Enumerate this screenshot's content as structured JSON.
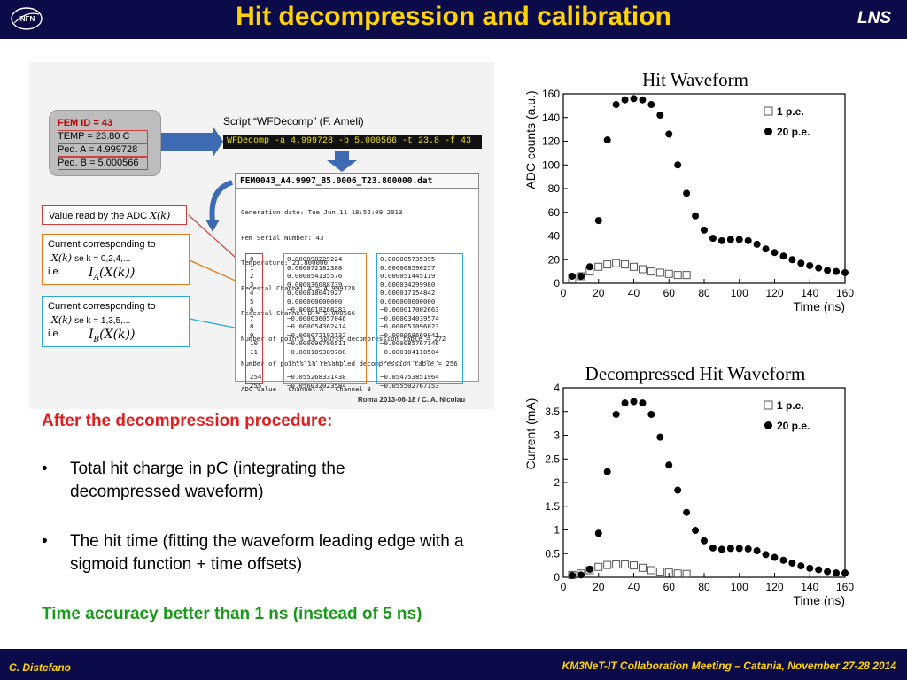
{
  "header": {
    "logo_text": "INFN",
    "title": "Hit decompression and calibration",
    "lab": "LNS"
  },
  "footer": {
    "author": "C. Distefano",
    "event": "KM3NeT-IT Collaboration Meeting – Catania, November 27-28 2014"
  },
  "figure": {
    "fem_box": {
      "title": "FEM ID = 43",
      "temp": "TEMP = 23.80 C",
      "ped_a": "Ped. A = 4.999728",
      "ped_b": "Ped. B = 5.000566"
    },
    "script_label": "Script “WFDecomp” (F. Ameli)",
    "command": "WFDecomp -a 4.999728 -b 5.000566 -t 23.8 -f 43",
    "file_name": "FEM0043_A4.9997_B5.0006_T23.800000.dat",
    "file_header_lines": [
      "Generation date: Tue Jun 11 18:52:09 2013",
      "Fem Serial Number: 43",
      "Temperature: 23.800000",
      "Pedestal Channel A = 4.999728",
      "Pedestal Channel B = 5.000566",
      "Number of points in source decompression table = 272",
      "Number of points in resampled decompression table = 256",
      "ADC Value   Channel A   Channel B"
    ],
    "adc_values": [
      "0",
      "1",
      "2",
      "3",
      "4",
      "5",
      "6",
      "7",
      "8",
      "9",
      "10",
      "11",
      "...",
      "",
      "254",
      "255"
    ],
    "channel_a": [
      "0.000090229224",
      "0.000072182388",
      "0.000054135576",
      "0.000036088739",
      "0.000018041927",
      "0.000000000000",
      "−0.000018268283",
      "−0.000036057046",
      "−0.000054362414",
      "−0.000072192132",
      "−0.000090786511",
      "−0.000109389780",
      "...............",
      "",
      "−0.055268331438",
      "−0.056032023584"
    ],
    "channel_b": [
      "0.000085735395",
      "0.000068590257",
      "0.000051445119",
      "0.000034299980",
      "0.000017154842",
      "0.000000000000",
      "−0.000017002663",
      "−0.000034039574",
      "−0.000051096023",
      "−0.000068669041",
      "−0.000085767146",
      "−0.000104110504",
      "...............",
      "",
      "−0.054753851964",
      "−0.055502767153"
    ],
    "adc_label": "Value read by the ADC",
    "adc_symbol": "X(k)",
    "current_a_l1": "Current corresponding to",
    "current_a_l2_sym": "X(k)",
    "current_a_l2": "se k = 0,2,4,...",
    "current_a_ie": "i.e.",
    "current_a_sym": "I",
    "current_a_sub": "A",
    "current_a_arg": "(X(k))",
    "current_b_l1": "Current corresponding to",
    "current_b_l2_sym": "X(k)",
    "current_b_l2": "se k = 1,3,5,...",
    "current_b_ie": "i.e.",
    "current_b_sym": "I",
    "current_b_sub": "B",
    "current_b_arg": "(X(k))",
    "note": "Roma 2013-06-18 / C. A. Nicolau"
  },
  "text": {
    "intro": "After the decompression procedure:",
    "bullets": [
      "Total hit charge in pC (integrating the decompressed waveform)",
      "The hit time (fitting the waveform leading edge with a sigmoid function + time offsets)"
    ],
    "bullet_symbol": "•",
    "accuracy": "Time accuracy better than 1 ns (instead of 5 ns)"
  },
  "chart_data": [
    {
      "type": "scatter",
      "title": "Hit Waveform",
      "xlabel": "Time (ns)",
      "ylabel": "ADC counts (a.u.)",
      "xlim": [
        0,
        160
      ],
      "ylim": [
        0,
        160
      ],
      "xticks": [
        "0",
        "20",
        "40",
        "60",
        "80",
        "100",
        "120",
        "140",
        "160"
      ],
      "yticks": [
        "0",
        "20",
        "40",
        "60",
        "80",
        "100",
        "120",
        "140",
        "160"
      ],
      "legend_position": "top-right",
      "series": [
        {
          "name": "1 p.e.",
          "marker": "open-square",
          "color": "#555555",
          "x": [
            5,
            10,
            15,
            20,
            25,
            30,
            35,
            40,
            45,
            50,
            55,
            60,
            65,
            70
          ],
          "y": [
            4,
            6,
            10,
            14,
            16,
            17,
            16,
            14,
            12,
            10,
            9,
            8,
            7,
            7
          ]
        },
        {
          "name": "20 p.e.",
          "marker": "filled-circle",
          "color": "#000000",
          "x": [
            5,
            10,
            15,
            20,
            25,
            30,
            35,
            40,
            45,
            50,
            55,
            60,
            65,
            70,
            75,
            80,
            85,
            90,
            95,
            100,
            105,
            110,
            115,
            120,
            125,
            130,
            135,
            140,
            145,
            150,
            155,
            160
          ],
          "y": [
            6,
            6,
            14,
            53,
            121,
            151,
            155,
            156,
            155,
            151,
            142,
            126,
            100,
            76,
            57,
            45,
            38,
            36,
            37,
            37,
            36,
            33,
            29,
            26,
            23,
            20,
            17,
            15,
            13,
            11,
            10,
            9
          ]
        }
      ]
    },
    {
      "type": "scatter",
      "title": "Decompressed Hit Waveform",
      "xlabel": "Time (ns)",
      "ylabel": "Current (mA)",
      "xlim": [
        0,
        160
      ],
      "ylim": [
        0,
        4
      ],
      "xticks": [
        "0",
        "20",
        "40",
        "60",
        "80",
        "100",
        "120",
        "140",
        "160"
      ],
      "yticks": [
        "0",
        "0.5",
        "1",
        "1.5",
        "2",
        "2.5",
        "3",
        "3.5",
        "4"
      ],
      "legend_position": "top-right",
      "series": [
        {
          "name": "1 p.e.",
          "marker": "open-square",
          "color": "#555555",
          "x": [
            5,
            10,
            15,
            20,
            25,
            30,
            35,
            40,
            45,
            50,
            55,
            60,
            65,
            70
          ],
          "y": [
            0.05,
            0.08,
            0.15,
            0.22,
            0.26,
            0.27,
            0.27,
            0.25,
            0.2,
            0.15,
            0.12,
            0.1,
            0.08,
            0.07
          ]
        },
        {
          "name": "20 p.e.",
          "marker": "filled-circle",
          "color": "#000000",
          "x": [
            5,
            10,
            15,
            20,
            25,
            30,
            35,
            40,
            45,
            50,
            55,
            60,
            65,
            70,
            75,
            80,
            85,
            90,
            95,
            100,
            105,
            110,
            115,
            120,
            125,
            130,
            135,
            140,
            145,
            150,
            155,
            160
          ],
          "y": [
            0.04,
            0.05,
            0.17,
            0.93,
            2.23,
            3.44,
            3.68,
            3.71,
            3.68,
            3.44,
            2.96,
            2.37,
            1.84,
            1.37,
            0.99,
            0.77,
            0.62,
            0.59,
            0.61,
            0.61,
            0.6,
            0.56,
            0.48,
            0.42,
            0.36,
            0.3,
            0.24,
            0.19,
            0.16,
            0.12,
            0.09,
            0.09
          ]
        }
      ]
    }
  ]
}
